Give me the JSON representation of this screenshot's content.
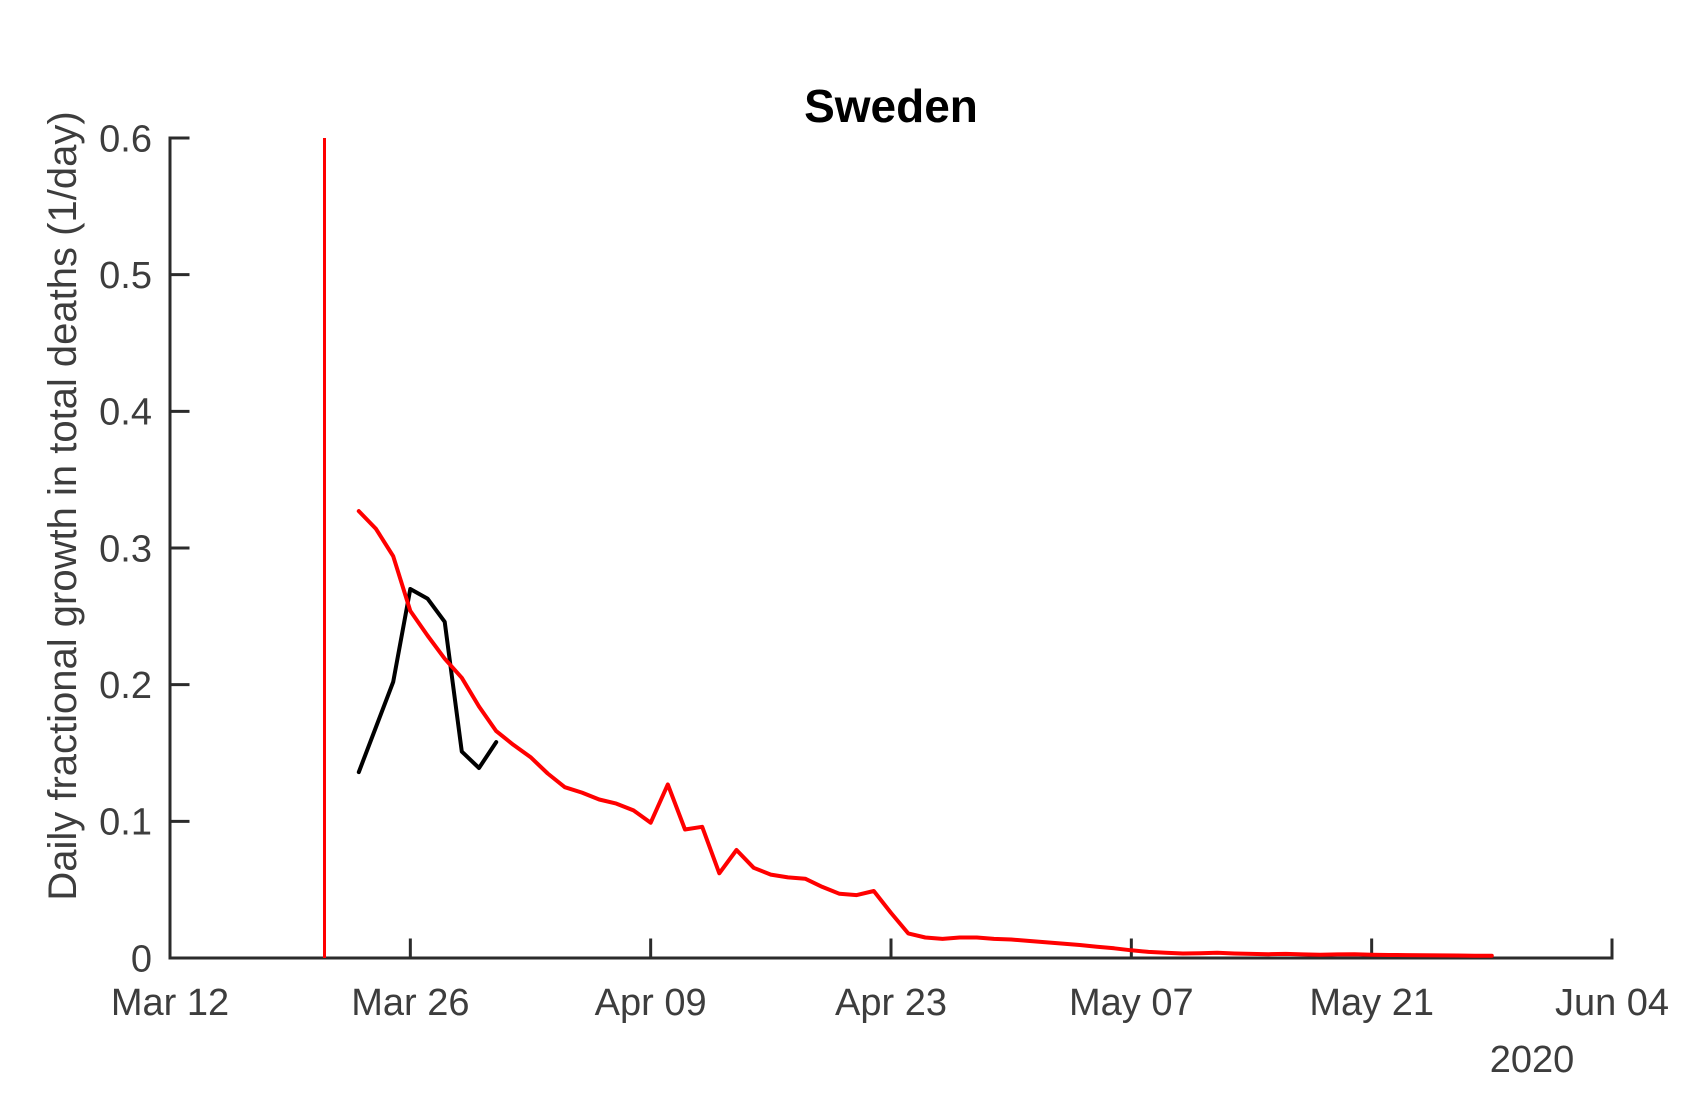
{
  "figure": {
    "window_title": "Sweden growth chart"
  },
  "colors": {
    "red_series": "#ff0000",
    "black_series": "#000000",
    "vertical_marker": "#ff0000",
    "axis": "#2b2b2b",
    "tick_text": "#3d3d3d",
    "title_text": "#000000",
    "background": "#ffffff"
  },
  "chart_data": {
    "type": "line",
    "title": "Sweden",
    "xlabel": "2020",
    "ylabel": "Daily fractional growth in total deaths (1/day)",
    "grid": false,
    "legend": null,
    "x_axis": {
      "start_date": "Mar 12",
      "year_label": "2020",
      "range_days": [
        0,
        84
      ],
      "tick_day_offsets": [
        0,
        14,
        28,
        42,
        56,
        70,
        84
      ],
      "tick_labels": [
        "Mar 12",
        "Mar 26",
        "Apr 09",
        "Apr 23",
        "May 07",
        "May 21",
        "Jun 04"
      ]
    },
    "y_axis": {
      "ylim": [
        0,
        0.6
      ],
      "tick_values": [
        0,
        0.1,
        0.2,
        0.3,
        0.4,
        0.5,
        0.6
      ],
      "tick_labels": [
        "0",
        "0.1",
        "0.2",
        "0.3",
        "0.4",
        "0.5",
        "0.6"
      ]
    },
    "vline": {
      "date": "Mar 21",
      "day_offset": 9,
      "y_from": 0,
      "y_to": 0.6,
      "color": "#ff0000"
    },
    "series": [
      {
        "name": "red",
        "color": "#ff0000",
        "start_date": "Mar 23",
        "start_day_offset": 11,
        "dates": [
          "Mar 23",
          "Mar 24",
          "Mar 25",
          "Mar 26",
          "Mar 27",
          "Mar 28",
          "Mar 29",
          "Mar 30",
          "Mar 31",
          "Apr 01",
          "Apr 02",
          "Apr 03",
          "Apr 04",
          "Apr 05",
          "Apr 06",
          "Apr 07",
          "Apr 08",
          "Apr 09",
          "Apr 10",
          "Apr 11",
          "Apr 12",
          "Apr 13",
          "Apr 14",
          "Apr 15",
          "Apr 16",
          "Apr 17",
          "Apr 18",
          "Apr 19",
          "Apr 20",
          "Apr 21",
          "Apr 22",
          "Apr 23",
          "Apr 24",
          "Apr 25",
          "Apr 26",
          "Apr 27",
          "Apr 28",
          "Apr 29",
          "Apr 30",
          "May 01",
          "May 02",
          "May 03",
          "May 04",
          "May 05",
          "May 06",
          "May 07",
          "May 08",
          "May 09",
          "May 10",
          "May 11",
          "May 12",
          "May 13",
          "May 14",
          "May 15",
          "May 16",
          "May 17",
          "May 18",
          "May 19",
          "May 20",
          "May 21",
          "May 22",
          "May 23",
          "May 24",
          "May 25",
          "May 26",
          "May 27",
          "May 28"
        ],
        "values": [
          0.327,
          0.314,
          0.294,
          0.254,
          0.236,
          0.219,
          0.205,
          0.184,
          0.166,
          0.156,
          0.147,
          0.135,
          0.125,
          0.121,
          0.116,
          0.113,
          0.108,
          0.099,
          0.127,
          0.094,
          0.096,
          0.062,
          0.079,
          0.066,
          0.061,
          0.059,
          0.058,
          0.052,
          0.047,
          0.046,
          0.049,
          0.033,
          0.018,
          0.015,
          0.014,
          0.015,
          0.015,
          0.014,
          0.0135,
          0.0125,
          0.0115,
          0.0105,
          0.0095,
          0.0083,
          0.0071,
          0.0056,
          0.0045,
          0.0038,
          0.0033,
          0.0035,
          0.0038,
          0.0033,
          0.003,
          0.0028,
          0.003,
          0.0026,
          0.0024,
          0.0026,
          0.0028,
          0.0024,
          0.0022,
          0.0021,
          0.002,
          0.0019,
          0.0018,
          0.0017,
          0.0017
        ]
      },
      {
        "name": "black",
        "color": "#000000",
        "start_date": "Mar 23",
        "start_day_offset": 11,
        "dates": [
          "Mar 23",
          "Mar 24",
          "Mar 25",
          "Mar 26",
          "Mar 27",
          "Mar 28",
          "Mar 29",
          "Mar 30",
          "Mar 31"
        ],
        "values": [
          0.136,
          0.169,
          0.202,
          0.27,
          0.263,
          0.246,
          0.151,
          0.139,
          0.158
        ]
      }
    ]
  }
}
